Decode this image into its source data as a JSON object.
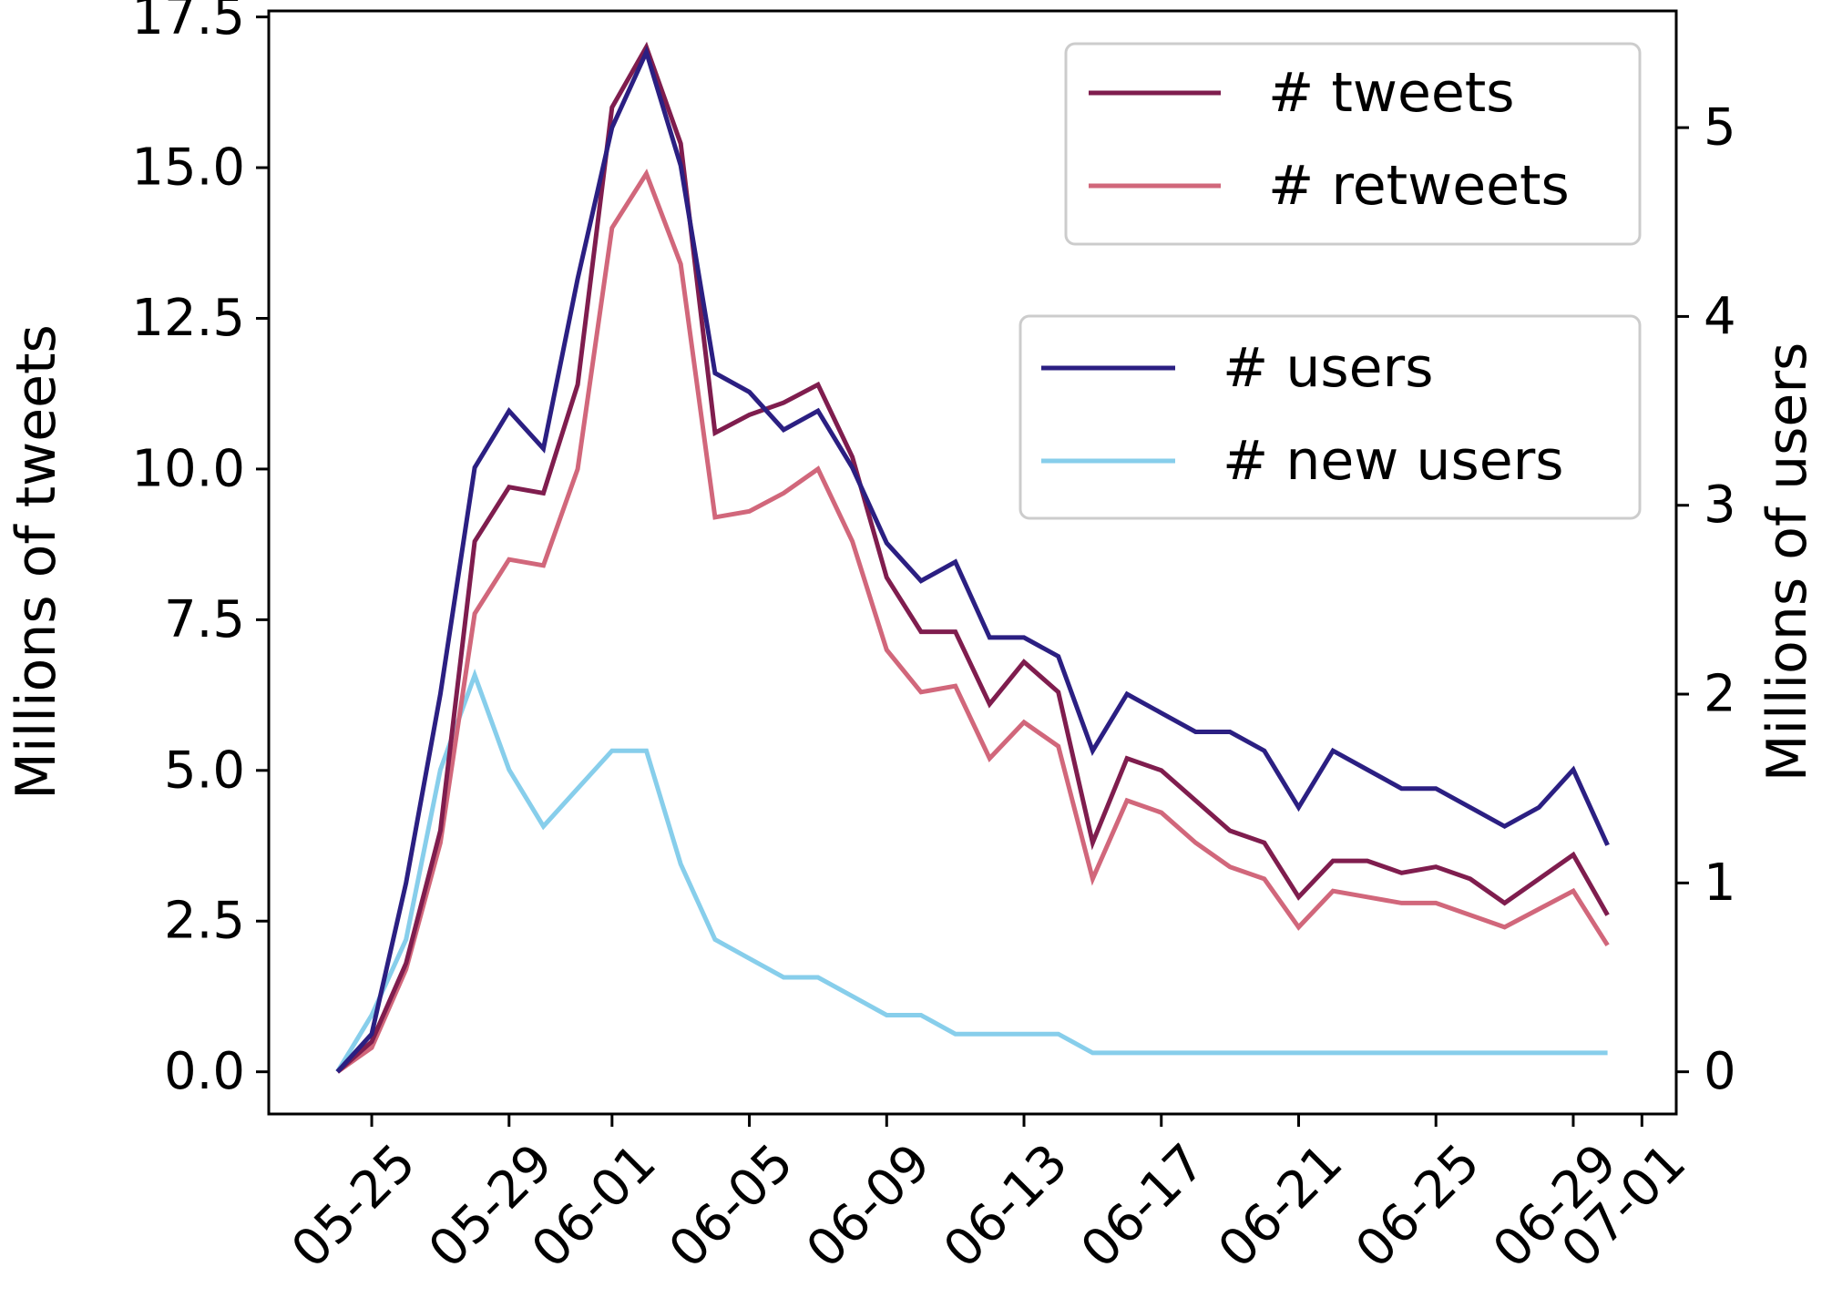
{
  "chart_data": {
    "type": "line",
    "ylabel": "Millions of tweets",
    "y2label": "Millions of users",
    "xlim": [
      "05-22",
      "07-02"
    ],
    "ylim": [
      -0.7,
      17.6
    ],
    "y2lim": [
      -0.2235,
      5.618
    ],
    "x_ticks": [
      "05-25",
      "05-29",
      "06-01",
      "06-05",
      "06-09",
      "06-13",
      "06-17",
      "06-21",
      "06-25",
      "06-29",
      "07-01"
    ],
    "y_ticks": [
      "0.0",
      "2.5",
      "5.0",
      "7.5",
      "10.0",
      "12.5",
      "15.0",
      "17.5"
    ],
    "y2_ticks": [
      "0",
      "1",
      "2",
      "3",
      "4",
      "5"
    ],
    "x": [
      "05-24",
      "05-25",
      "05-26",
      "05-27",
      "05-28",
      "05-29",
      "05-30",
      "05-31",
      "06-01",
      "06-02",
      "06-03",
      "06-04",
      "06-05",
      "06-06",
      "06-07",
      "06-08",
      "06-09",
      "06-10",
      "06-11",
      "06-12",
      "06-13",
      "06-14",
      "06-15",
      "06-16",
      "06-17",
      "06-18",
      "06-19",
      "06-20",
      "06-21",
      "06-22",
      "06-23",
      "06-24",
      "06-25",
      "06-26",
      "06-27",
      "06-28",
      "06-29",
      "06-30"
    ],
    "series": [
      {
        "name": "# tweets",
        "axis": "left",
        "color": "#7f1d4e",
        "values": [
          0.0,
          0.5,
          1.8,
          4.0,
          8.8,
          9.7,
          9.6,
          11.4,
          16.0,
          17.0,
          15.4,
          10.6,
          10.9,
          11.1,
          11.4,
          10.2,
          8.2,
          7.3,
          7.3,
          6.1,
          6.8,
          6.3,
          3.8,
          5.2,
          5.0,
          4.5,
          4.0,
          3.8,
          2.9,
          3.5,
          3.5,
          3.3,
          3.4,
          3.2,
          2.8,
          3.2,
          3.6,
          2.6
        ]
      },
      {
        "name": "# retweets",
        "axis": "left",
        "color": "#d1677b",
        "values": [
          0.0,
          0.4,
          1.7,
          3.8,
          7.6,
          8.5,
          8.4,
          10.0,
          14.0,
          14.9,
          13.4,
          9.2,
          9.3,
          9.6,
          10.0,
          8.8,
          7.0,
          6.3,
          6.4,
          5.2,
          5.8,
          5.4,
          3.2,
          4.5,
          4.3,
          3.8,
          3.4,
          3.2,
          2.4,
          3.0,
          2.9,
          2.8,
          2.8,
          2.6,
          2.4,
          2.7,
          3.0,
          2.1
        ]
      },
      {
        "name": "# users",
        "axis": "right",
        "color": "#2b1f82",
        "values": [
          0.0,
          0.2,
          1.0,
          2.0,
          3.2,
          3.5,
          3.3,
          4.2,
          5.0,
          5.4,
          4.8,
          3.7,
          3.6,
          3.4,
          3.5,
          3.2,
          2.8,
          2.6,
          2.7,
          2.3,
          2.3,
          2.2,
          1.7,
          2.0,
          1.9,
          1.8,
          1.8,
          1.7,
          1.4,
          1.7,
          1.6,
          1.5,
          1.5,
          1.4,
          1.3,
          1.4,
          1.6,
          1.2
        ]
      },
      {
        "name": "# new users",
        "axis": "right",
        "color": "#87ceeb",
        "values": [
          0.0,
          0.3,
          0.7,
          1.6,
          2.1,
          1.6,
          1.3,
          1.5,
          1.7,
          1.7,
          1.1,
          0.7,
          0.6,
          0.5,
          0.5,
          0.4,
          0.3,
          0.3,
          0.2,
          0.2,
          0.2,
          0.2,
          0.1,
          0.1,
          0.1,
          0.1,
          0.1,
          0.1,
          0.1,
          0.1,
          0.1,
          0.1,
          0.1,
          0.1,
          0.1,
          0.1,
          0.1,
          0.1
        ]
      }
    ],
    "legends": [
      {
        "placement": "top-right",
        "entries": [
          "# tweets",
          "# retweets"
        ]
      },
      {
        "placement": "center-right",
        "entries": [
          "# users",
          "# new users"
        ]
      }
    ]
  }
}
